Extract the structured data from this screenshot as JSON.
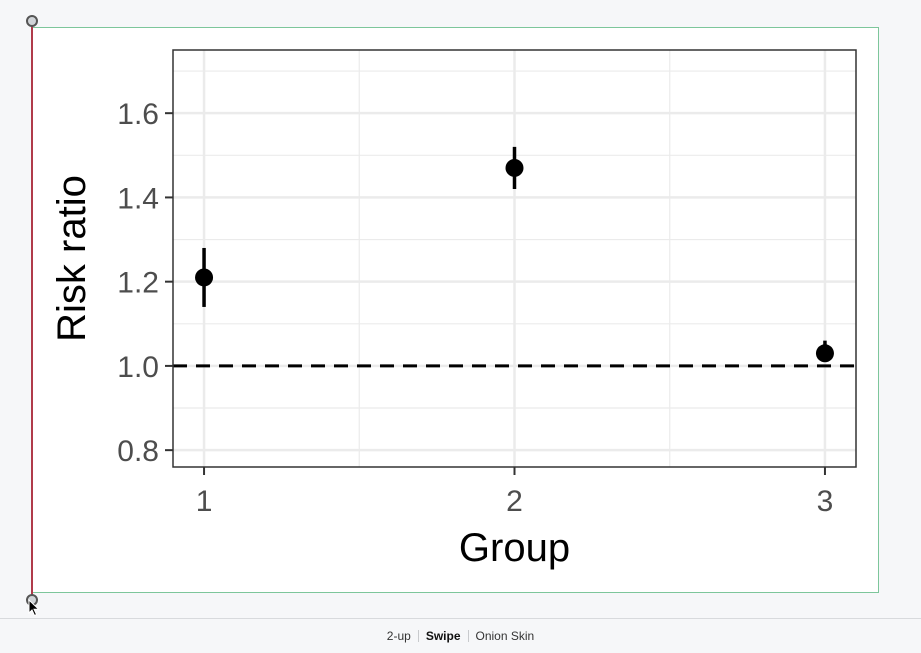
{
  "view_modes": [
    {
      "label": "2-up",
      "active": false
    },
    {
      "label": "Swipe",
      "active": true
    },
    {
      "label": "Onion Skin",
      "active": false
    }
  ],
  "colors": {
    "swipe_line": "#b03a4a",
    "frame_border": "#7dc69b"
  },
  "chart_data": {
    "type": "scatter",
    "xlabel": "Group",
    "ylabel": "Risk ratio",
    "x": [
      1,
      2,
      3
    ],
    "x_ticks": [
      "1",
      "2",
      "3"
    ],
    "y_ticks": [
      "0.8",
      "1.0",
      "1.2",
      "1.4",
      "1.6"
    ],
    "series": [
      {
        "points": [
          {
            "x": 1,
            "y": 1.21,
            "lower": 1.14,
            "upper": 1.28
          },
          {
            "x": 2,
            "y": 1.47,
            "lower": 1.42,
            "upper": 1.52
          },
          {
            "x": 3,
            "y": 1.03,
            "lower": 1.01,
            "upper": 1.06
          }
        ]
      }
    ],
    "reference_line": {
      "y": 1.0,
      "style": "dashed"
    },
    "xlim": [
      0.9,
      3.1
    ],
    "ylim": [
      0.76,
      1.75
    ],
    "grid": true,
    "legend": false
  }
}
